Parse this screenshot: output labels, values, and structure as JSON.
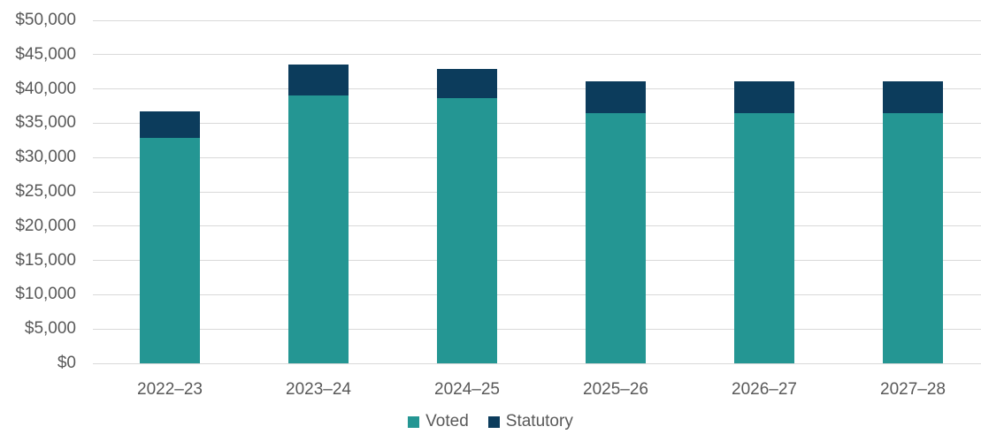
{
  "chart_data": {
    "type": "bar",
    "stacked": true,
    "title": "",
    "xlabel": "",
    "ylabel": "",
    "categories": [
      "2022–23",
      "2023–24",
      "2024–25",
      "2025–26",
      "2026–27",
      "2027–28"
    ],
    "series": [
      {
        "name": "Voted",
        "color": "#249693",
        "values": [
          32800,
          39100,
          38600,
          36500,
          36500,
          36500
        ]
      },
      {
        "name": "Statutory",
        "color": "#0c3c5c",
        "values": [
          3900,
          4400,
          4300,
          4600,
          4600,
          4600
        ]
      }
    ],
    "totals": [
      36700,
      43500,
      42900,
      41100,
      41100,
      41100
    ],
    "ylim": [
      0,
      50000
    ],
    "ytick_step": 5000,
    "ytick_labels": [
      "$0",
      "$5,000",
      "$10,000",
      "$15,000",
      "$20,000",
      "$25,000",
      "$30,000",
      "$35,000",
      "$40,000",
      "$45,000",
      "$50,000"
    ],
    "grid": true,
    "legend_position": "bottom",
    "colors": {
      "text": "#595959",
      "gridline": "#d9d9d9",
      "background": "#ffffff"
    }
  }
}
